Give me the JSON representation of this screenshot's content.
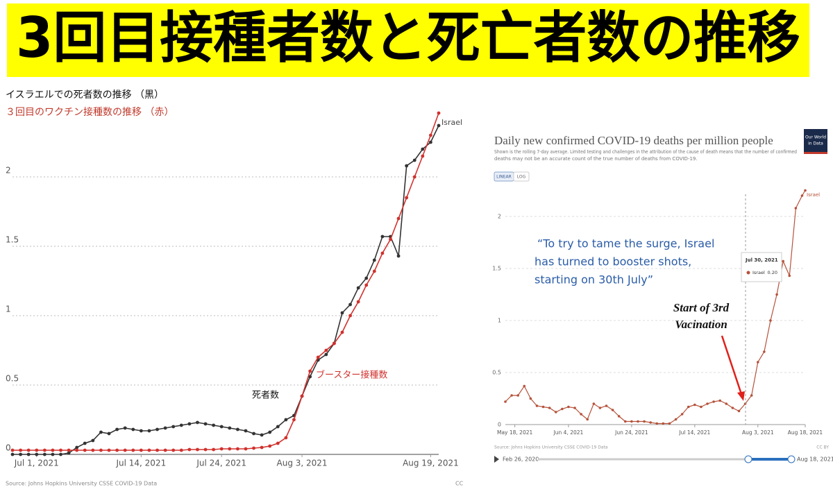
{
  "header": {
    "title": "3回目接種者数と死亡者数の推移"
  },
  "chart_data": [
    {
      "type": "line",
      "title": "イスラエルでの死者数の推移 （黒）",
      "subtitle": "３回目のワクチン接種数の推移 （赤）",
      "label": "Israel",
      "x": [
        "2021-06-28",
        "2021-06-29",
        "2021-06-30",
        "2021-07-01",
        "2021-07-02",
        "2021-07-03",
        "2021-07-04",
        "2021-07-05",
        "2021-07-06",
        "2021-07-07",
        "2021-07-08",
        "2021-07-09",
        "2021-07-10",
        "2021-07-11",
        "2021-07-12",
        "2021-07-13",
        "2021-07-14",
        "2021-07-15",
        "2021-07-16",
        "2021-07-17",
        "2021-07-18",
        "2021-07-19",
        "2021-07-20",
        "2021-07-21",
        "2021-07-22",
        "2021-07-23",
        "2021-07-24",
        "2021-07-25",
        "2021-07-26",
        "2021-07-27",
        "2021-07-28",
        "2021-07-29",
        "2021-07-30",
        "2021-07-31",
        "2021-08-01",
        "2021-08-02",
        "2021-08-03",
        "2021-08-04",
        "2021-08-05",
        "2021-08-06",
        "2021-08-07",
        "2021-08-08",
        "2021-08-09",
        "2021-08-10",
        "2021-08-11",
        "2021-08-12",
        "2021-08-13",
        "2021-08-14",
        "2021-08-15",
        "2021-08-16",
        "2021-08-17",
        "2021-08-18",
        "2021-08-19",
        "2021-08-20"
      ],
      "series": [
        {
          "name": "死者数",
          "color": "#333333",
          "values": [
            0,
            0,
            0,
            0,
            0,
            0,
            0,
            0.01,
            0.05,
            0.08,
            0.1,
            0.16,
            0.15,
            0.18,
            0.19,
            0.18,
            0.17,
            0.17,
            0.18,
            0.19,
            0.2,
            0.21,
            0.22,
            0.23,
            0.22,
            0.21,
            0.2,
            0.19,
            0.18,
            0.17,
            0.15,
            0.14,
            0.16,
            0.2,
            0.25,
            0.28,
            0.42,
            0.56,
            0.68,
            0.72,
            0.8,
            1.02,
            1.08,
            1.2,
            1.27,
            1.4,
            1.57,
            1.57,
            1.43,
            2.08,
            2.12,
            2.2,
            2.25,
            2.37
          ]
        },
        {
          "name": "ブースター接種数",
          "color": "#d0312d",
          "values": [
            0.03,
            0.03,
            0.03,
            0.03,
            0.03,
            0.03,
            0.03,
            0.03,
            0.03,
            0.03,
            0.03,
            0.03,
            0.03,
            0.03,
            0.03,
            0.03,
            0.03,
            0.03,
            0.03,
            0.03,
            0.03,
            0.03,
            0.035,
            0.035,
            0.035,
            0.035,
            0.04,
            0.04,
            0.04,
            0.04,
            0.045,
            0.05,
            0.06,
            0.08,
            0.12,
            0.25,
            0.42,
            0.6,
            0.7,
            0.75,
            0.8,
            0.88,
            1.0,
            1.1,
            1.22,
            1.32,
            1.45,
            1.55,
            1.7,
            1.85,
            2.0,
            2.15,
            2.3,
            2.46
          ]
        }
      ],
      "xlim": [
        "2021-06-28",
        "2021-08-20"
      ],
      "xticks": [
        {
          "value": "2021-07-01",
          "label": "Jul 1, 2021"
        },
        {
          "value": "2021-07-14",
          "label": "Jul 14, 2021"
        },
        {
          "value": "2021-07-24",
          "label": "Jul 24, 2021"
        },
        {
          "value": "2021-08-03",
          "label": "Aug 3, 2021"
        },
        {
          "value": "2021-08-19",
          "label": "Aug 19, 2021"
        }
      ],
      "ylim": [
        0,
        2.5
      ],
      "yticks": [
        0,
        0.5,
        1,
        1.5,
        2
      ],
      "grid": true,
      "source": "Source: Johns Hopkins University CSSE COVID-19 Data",
      "license": "CC"
    },
    {
      "type": "line",
      "title": "Daily new confirmed COVID-19 deaths per million people",
      "subtitle": [
        "Shown is the rolling 7-day average. Limited testing and challenges in the attribution of the cause of death means that the number of confirmed",
        "deaths may not be an accurate count of the true number of deaths from COVID-19."
      ],
      "logo": [
        "Our World",
        "in Data"
      ],
      "scale_buttons": [
        "LINEAR",
        "LOG"
      ],
      "quote": [
        "“To try to tame the surge, Israel",
        "has turned to booster shots,",
        "starting on 30th July”"
      ],
      "annotation": [
        "Start of 3rd",
        "Vacination"
      ],
      "tooltip": {
        "date": "Jul 30, 2021",
        "value": "0.20"
      },
      "x": [
        "2021-05-15",
        "2021-05-17",
        "2021-05-19",
        "2021-05-21",
        "2021-05-23",
        "2021-05-25",
        "2021-05-27",
        "2021-05-29",
        "2021-05-31",
        "2021-06-02",
        "2021-06-04",
        "2021-06-06",
        "2021-06-08",
        "2021-06-10",
        "2021-06-12",
        "2021-06-14",
        "2021-06-16",
        "2021-06-18",
        "2021-06-20",
        "2021-06-22",
        "2021-06-24",
        "2021-06-26",
        "2021-06-28",
        "2021-06-30",
        "2021-07-02",
        "2021-07-04",
        "2021-07-06",
        "2021-07-08",
        "2021-07-10",
        "2021-07-12",
        "2021-07-14",
        "2021-07-16",
        "2021-07-18",
        "2021-07-20",
        "2021-07-22",
        "2021-07-24",
        "2021-07-26",
        "2021-07-28",
        "2021-07-30",
        "2021-08-01",
        "2021-08-03",
        "2021-08-05",
        "2021-08-07",
        "2021-08-09",
        "2021-08-11",
        "2021-08-13",
        "2021-08-15",
        "2021-08-17",
        "2021-08-18"
      ],
      "series": [
        {
          "name": "Israel",
          "color": "#b5523b",
          "values": [
            0.22,
            0.28,
            0.28,
            0.37,
            0.25,
            0.18,
            0.17,
            0.16,
            0.12,
            0.15,
            0.17,
            0.16,
            0.1,
            0.05,
            0.2,
            0.16,
            0.18,
            0.14,
            0.08,
            0.03,
            0.03,
            0.03,
            0.03,
            0.02,
            0.01,
            0.01,
            0.01,
            0.05,
            0.1,
            0.17,
            0.19,
            0.17,
            0.2,
            0.22,
            0.23,
            0.2,
            0.16,
            0.13,
            0.2,
            0.28,
            0.6,
            0.7,
            1.0,
            1.25,
            1.57,
            1.43,
            2.08,
            2.2,
            2.25
          ]
        }
      ],
      "xlim": [
        "2021-05-15",
        "2021-08-18"
      ],
      "xticks": [
        {
          "value": "2021-05-18",
          "label": "May 18, 2021"
        },
        {
          "value": "2021-06-04",
          "label": "Jun 4, 2021"
        },
        {
          "value": "2021-06-24",
          "label": "Jun 24, 2021"
        },
        {
          "value": "2021-07-14",
          "label": "Jul 14, 2021"
        },
        {
          "value": "2021-08-03",
          "label": "Aug 3, 2021"
        },
        {
          "value": "2021-08-18",
          "label": "Aug 18, 2021"
        }
      ],
      "ylim": [
        0,
        2.3
      ],
      "yticks": [
        0,
        0.5,
        1,
        1.5,
        2
      ],
      "grid": true,
      "source": "Source: Johns Hopkins University CSSE COVID-19 Data",
      "license": "CC BY",
      "timeline": {
        "start": "Feb 26, 2020",
        "end": "Aug 18, 2021"
      }
    }
  ]
}
